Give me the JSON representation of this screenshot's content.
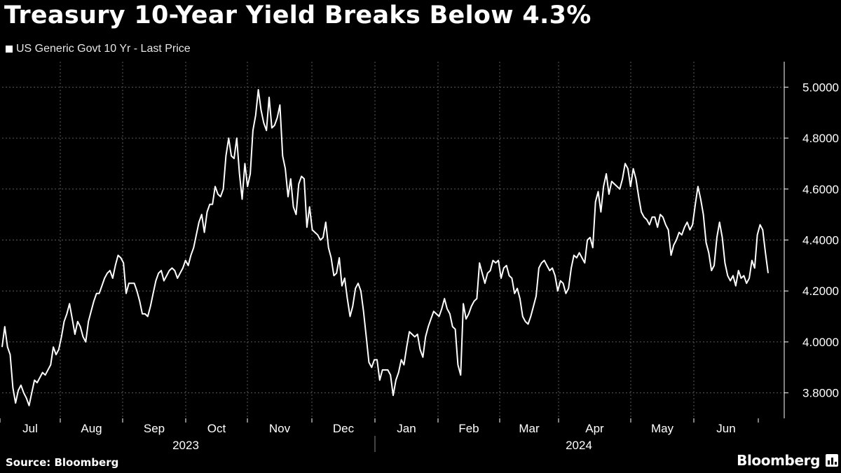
{
  "title": "Treasury 10-Year Yield Breaks Below 4.3%",
  "legend_label": "US Generic Govt 10 Yr - Last Price",
  "source": "Source: Bloomberg",
  "brand": "Bloomberg",
  "brand_icon": "bloomberg-logo-icon",
  "colors": {
    "background": "#000000",
    "line": "#ffffff",
    "grid": "#5a5a5a",
    "text": "#ffffff"
  },
  "chart_data": {
    "type": "line",
    "title": "Treasury 10-Year Yield Breaks Below 4.3%",
    "series": [
      {
        "name": "US Generic Govt 10 Yr - Last Price",
        "start_date": "2023-06-30",
        "end_date": "2024-06-20",
        "values": [
          3.98,
          4.06,
          3.98,
          3.95,
          3.82,
          3.76,
          3.81,
          3.83,
          3.8,
          3.78,
          3.75,
          3.8,
          3.85,
          3.84,
          3.86,
          3.88,
          3.87,
          3.89,
          3.91,
          3.98,
          3.95,
          3.97,
          4.02,
          4.08,
          4.11,
          4.15,
          4.09,
          4.03,
          4.08,
          4.06,
          4.02,
          4.0,
          4.08,
          4.12,
          4.16,
          4.19,
          4.19,
          4.22,
          4.25,
          4.27,
          4.28,
          4.25,
          4.3,
          4.34,
          4.33,
          4.31,
          4.19,
          4.23,
          4.23,
          4.23,
          4.2,
          4.16,
          4.11,
          4.11,
          4.1,
          4.14,
          4.19,
          4.24,
          4.27,
          4.28,
          4.24,
          4.26,
          4.28,
          4.29,
          4.28,
          4.25,
          4.27,
          4.29,
          4.32,
          4.3,
          4.34,
          4.37,
          4.42,
          4.47,
          4.5,
          4.43,
          4.51,
          4.54,
          4.54,
          4.61,
          4.58,
          4.57,
          4.6,
          4.73,
          4.8,
          4.73,
          4.72,
          4.8,
          4.66,
          4.56,
          4.7,
          4.61,
          4.66,
          4.83,
          4.89,
          4.99,
          4.91,
          4.86,
          4.83,
          4.96,
          4.84,
          4.85,
          4.88,
          4.93,
          4.73,
          4.68,
          4.57,
          4.64,
          4.53,
          4.5,
          4.62,
          4.65,
          4.64,
          4.45,
          4.53,
          4.44,
          4.43,
          4.42,
          4.4,
          4.41,
          4.47,
          4.37,
          4.33,
          4.26,
          4.27,
          4.33,
          4.22,
          4.25,
          4.17,
          4.1,
          4.14,
          4.21,
          4.23,
          4.2,
          4.12,
          4.02,
          3.92,
          3.9,
          3.93,
          3.93,
          3.85,
          3.89,
          3.89,
          3.89,
          3.87,
          3.79,
          3.85,
          3.88,
          3.93,
          3.91,
          3.98,
          4.04,
          4.03,
          4.02,
          4.03,
          3.97,
          3.94,
          4.02,
          4.06,
          4.09,
          4.12,
          4.11,
          4.1,
          4.13,
          4.17,
          4.13,
          4.11,
          4.06,
          4.05,
          3.91,
          3.87,
          4.15,
          4.09,
          4.11,
          4.14,
          4.16,
          4.17,
          4.31,
          4.27,
          4.23,
          4.27,
          4.28,
          4.32,
          4.31,
          4.32,
          4.25,
          4.29,
          4.3,
          4.26,
          4.25,
          4.19,
          4.21,
          4.17,
          4.1,
          4.08,
          4.07,
          4.1,
          4.14,
          4.18,
          4.29,
          4.31,
          4.32,
          4.3,
          4.28,
          4.29,
          4.26,
          4.2,
          4.24,
          4.23,
          4.19,
          4.21,
          4.29,
          4.34,
          4.33,
          4.35,
          4.33,
          4.31,
          4.4,
          4.41,
          4.37,
          4.55,
          4.59,
          4.51,
          4.61,
          4.66,
          4.58,
          4.63,
          4.62,
          4.61,
          4.6,
          4.64,
          4.7,
          4.68,
          4.61,
          4.68,
          4.64,
          4.57,
          4.51,
          4.49,
          4.48,
          4.46,
          4.49,
          4.49,
          4.45,
          4.5,
          4.49,
          4.46,
          4.44,
          4.34,
          4.38,
          4.4,
          4.43,
          4.42,
          4.45,
          4.47,
          4.44,
          4.46,
          4.54,
          4.61,
          4.56,
          4.5,
          4.39,
          4.35,
          4.28,
          4.3,
          4.41,
          4.47,
          4.41,
          4.31,
          4.26,
          4.24,
          4.26,
          4.22,
          4.28,
          4.25,
          4.26,
          4.23,
          4.25,
          4.32,
          4.29,
          4.42,
          4.46,
          4.44,
          4.35,
          4.27
        ]
      }
    ],
    "y_ticks": [
      "3.8000",
      "4.0000",
      "4.2000",
      "4.4000",
      "4.6000",
      "4.8000",
      "5.0000"
    ],
    "ylim": [
      3.7,
      5.1
    ],
    "months": [
      "Jul",
      "Aug",
      "Sep",
      "Oct",
      "Nov",
      "Dec",
      "Jan",
      "Feb",
      "Mar",
      "Apr",
      "May",
      "Jun"
    ],
    "years": [
      "2023",
      "2024"
    ],
    "grid": true,
    "y_axis_side": "right",
    "legend_position": "top-left"
  }
}
